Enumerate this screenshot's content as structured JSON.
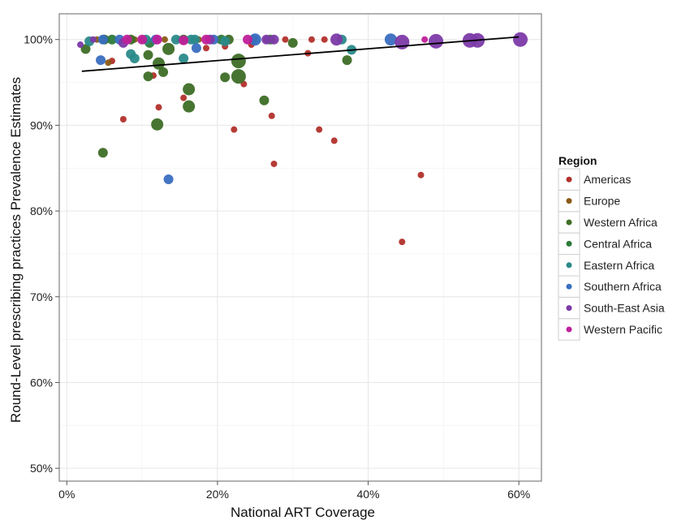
{
  "chart_data": {
    "type": "scatter",
    "xlabel": "National ART Coverage",
    "ylabel": "Round-Level prescribing practices Prevalence Estimates",
    "xlim": [
      -1,
      63
    ],
    "ylim": [
      48.5,
      103
    ],
    "x_ticks": [
      0,
      20,
      40,
      60
    ],
    "x_tick_labels": [
      "0%",
      "20%",
      "40%",
      "60%"
    ],
    "y_ticks": [
      50,
      60,
      70,
      80,
      90,
      100
    ],
    "y_tick_labels": [
      "50%",
      "60%",
      "70%",
      "80%",
      "90%",
      "100%"
    ],
    "grid": true,
    "legend": {
      "title": "Region",
      "position": "right"
    },
    "trend_line": {
      "x": [
        2,
        60
      ],
      "y": [
        96.3,
        100.3
      ]
    },
    "colors": {
      "Americas": "#b2302b",
      "Europe": "#8a5a16",
      "Western Africa": "#3d6e26",
      "Central Africa": "#2c7a3a",
      "Eastern Africa": "#2a8a8a",
      "Southern Africa": "#3a6ec0",
      "South-East Asia": "#7c3aa8",
      "Western Pacific": "#c0209a"
    },
    "series": [
      {
        "name": "Americas",
        "points": [
          [
            7.5,
            90.7,
            1
          ],
          [
            11.5,
            95.8,
            1
          ],
          [
            12.2,
            92.1,
            1
          ],
          [
            15.5,
            93.2,
            1
          ],
          [
            18.5,
            99.0,
            1
          ],
          [
            21,
            99.2,
            1
          ],
          [
            22.2,
            89.5,
            1
          ],
          [
            23.5,
            94.8,
            1
          ],
          [
            24.5,
            99.4,
            1
          ],
          [
            26.5,
            100.0,
            1
          ],
          [
            27.2,
            91.1,
            1
          ],
          [
            27.5,
            85.5,
            1
          ],
          [
            29,
            100.0,
            1
          ],
          [
            32,
            98.4,
            1
          ],
          [
            32.5,
            100.0,
            1
          ],
          [
            33.5,
            89.5,
            1
          ],
          [
            34.2,
            100.0,
            1
          ],
          [
            35.5,
            88.2,
            1
          ],
          [
            44.5,
            76.4,
            1
          ],
          [
            47,
            84.2,
            1
          ],
          [
            6,
            97.5,
            1
          ],
          [
            10,
            100.0,
            1
          ],
          [
            15,
            100.0,
            1
          ],
          [
            19,
            100.0,
            1
          ]
        ]
      },
      {
        "name": "Europe",
        "points": [
          [
            4,
            100.0,
            1
          ],
          [
            5.5,
            97.3,
            1
          ],
          [
            9,
            100.0,
            1
          ],
          [
            13,
            100.0,
            1
          ],
          [
            17.5,
            100.0,
            1
          ]
        ]
      },
      {
        "name": "Western Africa",
        "points": [
          [
            2.5,
            98.9,
            2
          ],
          [
            4.8,
            86.8,
            2
          ],
          [
            5,
            100.0,
            2
          ],
          [
            8.5,
            100.0,
            2
          ],
          [
            10.8,
            98.2,
            2
          ],
          [
            10.8,
            95.7,
            2
          ],
          [
            12,
            90.1,
            3
          ],
          [
            12.2,
            97.2,
            3
          ],
          [
            12.8,
            96.2,
            2
          ],
          [
            13.5,
            98.9,
            3
          ],
          [
            16.2,
            94.2,
            3
          ],
          [
            16.2,
            92.2,
            3
          ],
          [
            21,
            95.6,
            2
          ],
          [
            22.8,
            97.5,
            4
          ],
          [
            22.8,
            95.7,
            4
          ],
          [
            26.2,
            92.9,
            2
          ],
          [
            30,
            99.6,
            2
          ],
          [
            37.2,
            97.6,
            2
          ],
          [
            15.5,
            100.0,
            2
          ],
          [
            21.5,
            100.0,
            2
          ]
        ]
      },
      {
        "name": "Central Africa",
        "points": [
          [
            6,
            100.0,
            2
          ],
          [
            11,
            99.6,
            2
          ],
          [
            20.5,
            100.0,
            2
          ],
          [
            27,
            100.0,
            2
          ]
        ]
      },
      {
        "name": "Eastern Africa",
        "points": [
          [
            3,
            99.8,
            2
          ],
          [
            8.5,
            98.3,
            2
          ],
          [
            9,
            97.8,
            2
          ],
          [
            10.5,
            100.0,
            2
          ],
          [
            14.5,
            100.0,
            2
          ],
          [
            15.5,
            97.8,
            2
          ],
          [
            16.5,
            100.0,
            2
          ],
          [
            17,
            100.0,
            2
          ],
          [
            21,
            99.8,
            2
          ],
          [
            24.8,
            100.0,
            2
          ],
          [
            36.5,
            100.0,
            2
          ],
          [
            37.8,
            98.8,
            2
          ]
        ]
      },
      {
        "name": "Southern Africa",
        "points": [
          [
            4.5,
            97.6,
            2
          ],
          [
            4.8,
            100.0,
            2
          ],
          [
            7,
            100.0,
            2
          ],
          [
            11.8,
            100.0,
            2
          ],
          [
            13.5,
            83.7,
            2
          ],
          [
            17.2,
            99.0,
            2
          ],
          [
            19.5,
            100.0,
            2
          ],
          [
            25,
            100.0,
            3
          ],
          [
            43,
            100.0,
            3
          ]
        ]
      },
      {
        "name": "South-East Asia",
        "points": [
          [
            1.8,
            99.4,
            1
          ],
          [
            3.5,
            100.0,
            1
          ],
          [
            7.5,
            99.6,
            2
          ],
          [
            19,
            100.0,
            2
          ],
          [
            26.5,
            100.0,
            2
          ],
          [
            27.5,
            100.0,
            2
          ],
          [
            35.8,
            100.0,
            3
          ],
          [
            44.5,
            99.7,
            4
          ],
          [
            49,
            99.8,
            4
          ],
          [
            53.5,
            99.9,
            4
          ],
          [
            54.5,
            99.9,
            4
          ],
          [
            60.2,
            100.0,
            4
          ]
        ]
      },
      {
        "name": "Western Pacific",
        "points": [
          [
            8,
            100.0,
            2
          ],
          [
            10,
            100.0,
            2
          ],
          [
            12,
            100.0,
            2
          ],
          [
            15.5,
            99.9,
            2
          ],
          [
            18.5,
            100.0,
            2
          ],
          [
            24,
            100.0,
            2
          ],
          [
            47.5,
            100.0,
            1
          ]
        ]
      }
    ]
  }
}
